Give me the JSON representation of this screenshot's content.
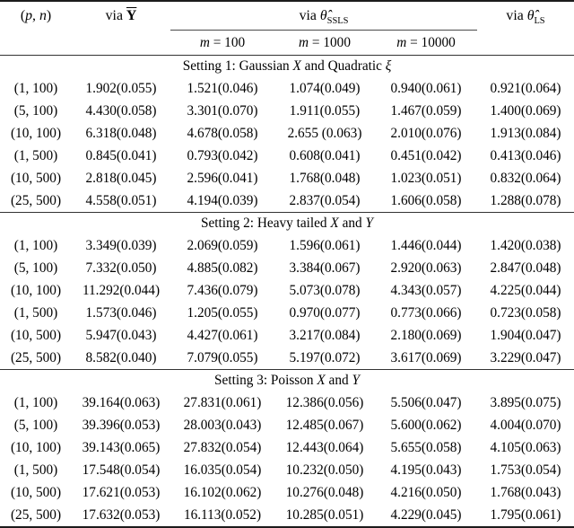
{
  "table": {
    "header": {
      "pn_segments": [
        {
          "text": "("
        },
        {
          "text": "p",
          "italic": true
        },
        {
          "text": ", "
        },
        {
          "text": "n",
          "italic": true
        },
        {
          "text": ")"
        }
      ],
      "via_ybar": {
        "prefix": "via",
        "symbol": "Y"
      },
      "via_ssls": {
        "prefix": "via",
        "symbol": "θ̂",
        "subscript": "SSLS"
      },
      "via_ls": {
        "prefix": "via",
        "symbol": "θ̂",
        "subscript": "LS"
      },
      "subheaders": [
        {
          "var": "m",
          "rest": " = 100"
        },
        {
          "var": "m",
          "rest": " = 1000"
        },
        {
          "var": "m",
          "rest": " = 10000"
        }
      ]
    },
    "sections": [
      {
        "title_segments": [
          {
            "text": "Setting 1: Gaussian "
          },
          {
            "text": "X",
            "italic": true
          },
          {
            "text": " and Quadratic "
          },
          {
            "text": "ξ",
            "italic": true
          }
        ],
        "rows": [
          {
            "pn": "(1, 100)",
            "values": [
              "1.902(0.055)",
              "1.521(0.046)",
              "1.074(0.049)",
              "0.940(0.061)",
              "0.921(0.064)"
            ]
          },
          {
            "pn": "(5, 100)",
            "values": [
              "4.430(0.058)",
              "3.301(0.070)",
              "1.911(0.055)",
              "1.467(0.059)",
              "1.400(0.069)"
            ]
          },
          {
            "pn": "(10, 100)",
            "values": [
              "6.318(0.048)",
              "4.678(0.058)",
              "2.655 (0.063)",
              "2.010(0.076)",
              "1.913(0.084)"
            ]
          },
          {
            "pn": "(1, 500)",
            "values": [
              "0.845(0.041)",
              "0.793(0.042)",
              "0.608(0.041)",
              "0.451(0.042)",
              "0.413(0.046)"
            ]
          },
          {
            "pn": "(10, 500)",
            "values": [
              "2.818(0.045)",
              "2.596(0.041)",
              "1.768(0.048)",
              "1.023(0.051)",
              "0.832(0.064)"
            ]
          },
          {
            "pn": "(25, 500)",
            "values": [
              "4.558(0.051)",
              "4.194(0.039)",
              "2.837(0.054)",
              "1.606(0.058)",
              "1.288(0.078)"
            ]
          }
        ]
      },
      {
        "title_segments": [
          {
            "text": "Setting 2: Heavy tailed "
          },
          {
            "text": "X",
            "italic": true
          },
          {
            "text": " and "
          },
          {
            "text": "Y",
            "italic": true
          }
        ],
        "rows": [
          {
            "pn": "(1, 100)",
            "values": [
              "3.349(0.039)",
              "2.069(0.059)",
              "1.596(0.061)",
              "1.446(0.044)",
              "1.420(0.038)"
            ]
          },
          {
            "pn": "(5, 100)",
            "values": [
              "7.332(0.050)",
              "4.885(0.082)",
              "3.384(0.067)",
              "2.920(0.063)",
              "2.847(0.048)"
            ]
          },
          {
            "pn": "(10, 100)",
            "values": [
              "11.292(0.044)",
              "7.436(0.079)",
              "5.073(0.078)",
              "4.343(0.057)",
              "4.225(0.044)"
            ]
          },
          {
            "pn": "(1, 500)",
            "values": [
              "1.573(0.046)",
              "1.205(0.055)",
              "0.970(0.077)",
              "0.773(0.066)",
              "0.723(0.058)"
            ]
          },
          {
            "pn": "(10, 500)",
            "values": [
              "5.947(0.043)",
              "4.427(0.061)",
              "3.217(0.084)",
              "2.180(0.069)",
              "1.904(0.047)"
            ]
          },
          {
            "pn": "(25, 500)",
            "values": [
              "8.582(0.040)",
              "7.079(0.055)",
              "5.197(0.072)",
              "3.617(0.069)",
              "3.229(0.047)"
            ]
          }
        ]
      },
      {
        "title_segments": [
          {
            "text": "Setting 3: Poisson "
          },
          {
            "text": "X",
            "italic": true
          },
          {
            "text": " and "
          },
          {
            "text": "Y",
            "italic": true
          }
        ],
        "rows": [
          {
            "pn": "(1, 100)",
            "values": [
              "39.164(0.063)",
              "27.831(0.061)",
              "12.386(0.056)",
              "5.506(0.047)",
              "3.895(0.075)"
            ]
          },
          {
            "pn": "(5, 100)",
            "values": [
              "39.396(0.053)",
              "28.003(0.043)",
              "12.485(0.067)",
              "5.600(0.062)",
              "4.004(0.070)"
            ]
          },
          {
            "pn": "(10, 100)",
            "values": [
              "39.143(0.065)",
              "27.832(0.054)",
              "12.443(0.064)",
              "5.655(0.058)",
              "4.105(0.063)"
            ]
          },
          {
            "pn": "(1, 500)",
            "values": [
              "17.548(0.054)",
              "16.035(0.054)",
              "10.232(0.050)",
              "4.195(0.043)",
              "1.753(0.054)"
            ]
          },
          {
            "pn": "(10, 500)",
            "values": [
              "17.621(0.053)",
              "16.102(0.062)",
              "10.276(0.048)",
              "4.216(0.050)",
              "1.768(0.043)"
            ]
          },
          {
            "pn": "(25, 500)",
            "values": [
              "17.632(0.053)",
              "16.113(0.052)",
              "10.285(0.051)",
              "4.229(0.045)",
              "1.795(0.061)"
            ]
          }
        ]
      }
    ]
  }
}
